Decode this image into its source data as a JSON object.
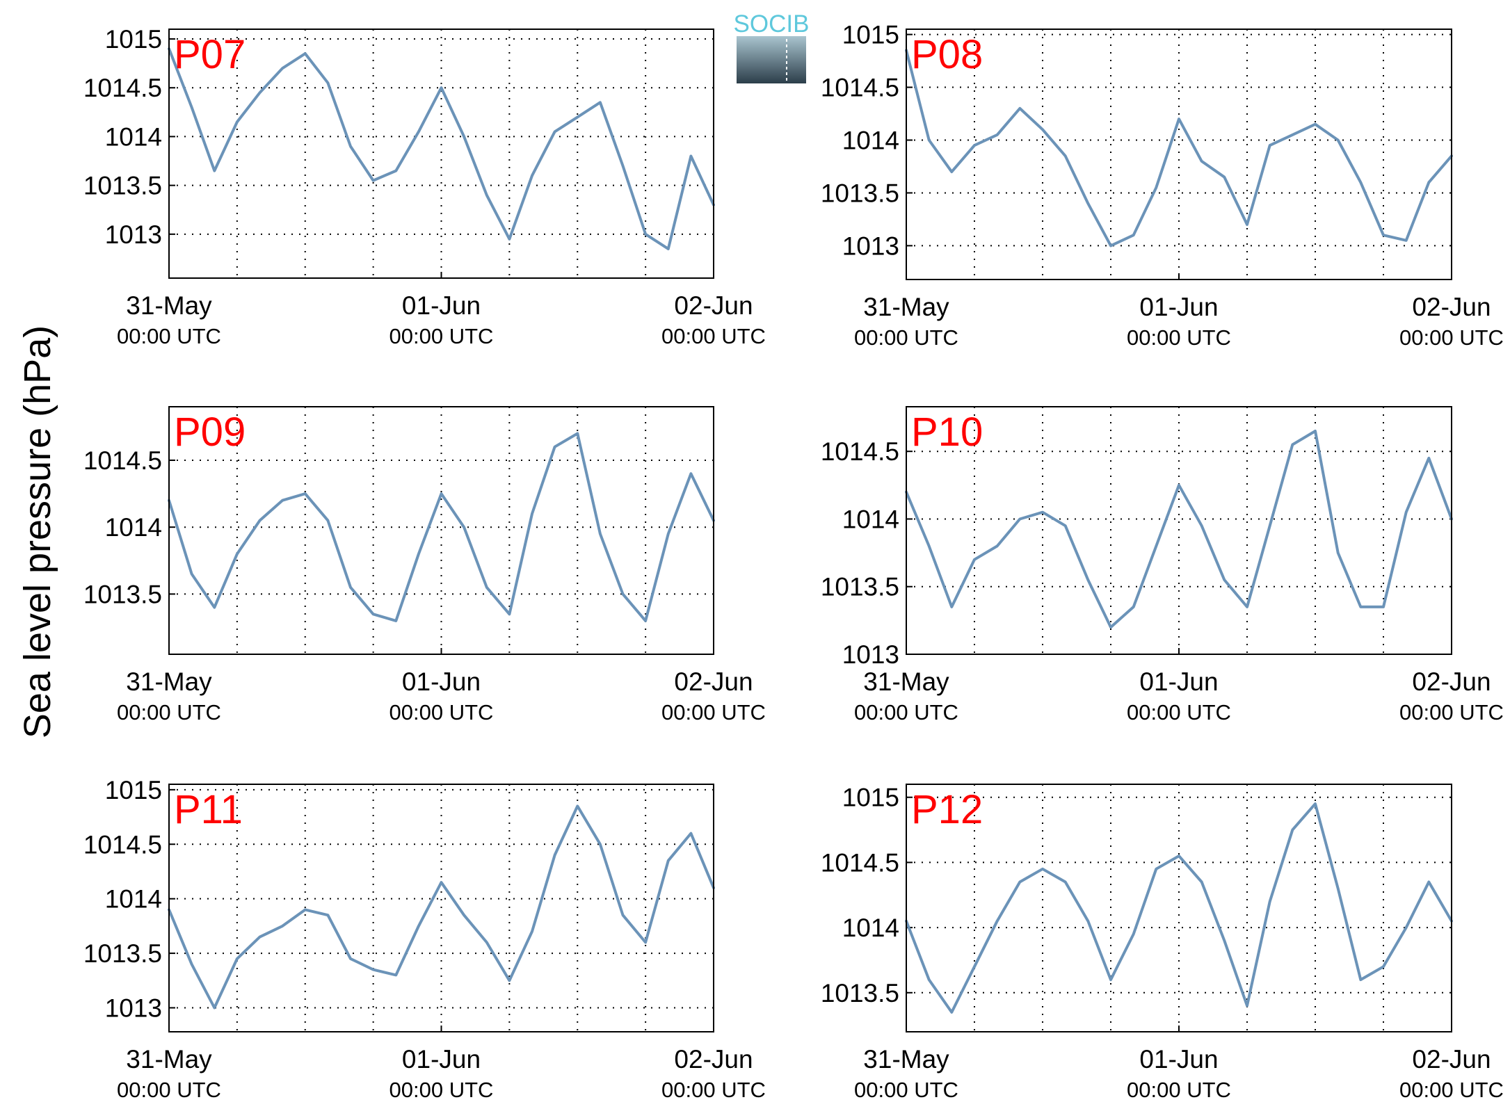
{
  "ylabel": "Sea level pressure (hPa)",
  "logo": {
    "text": "SOCIB"
  },
  "colors": {
    "line": "#6b93b8",
    "panel_label": "#ff0000",
    "axis": "#000000",
    "grid": "#000000"
  },
  "x_ticks": [
    {
      "date": "31-May",
      "time": "00:00 UTC"
    },
    {
      "date": "01-Jun",
      "time": "00:00 UTC"
    },
    {
      "date": "02-Jun",
      "time": "00:00 UTC"
    }
  ],
  "chart_data": [
    {
      "type": "line",
      "label": "P07",
      "x_unit": "hours since 31-May 00:00 UTC",
      "xlim": [
        0,
        48
      ],
      "ylim": [
        1012.55,
        1015.1
      ],
      "yticks": [
        1013,
        1013.5,
        1014,
        1014.5,
        1015
      ],
      "grid": true,
      "series": [
        {
          "x": [
            0,
            2,
            4,
            6,
            8,
            10,
            12,
            14,
            16,
            18,
            20,
            22,
            24,
            26,
            28,
            30,
            32,
            34,
            36,
            38,
            40,
            42,
            44,
            46,
            48
          ],
          "y": [
            1014.9,
            1014.3,
            1013.65,
            1014.15,
            1014.45,
            1014.7,
            1014.85,
            1014.55,
            1013.9,
            1013.55,
            1013.65,
            1014.05,
            1014.5,
            1014.0,
            1013.4,
            1012.95,
            1013.6,
            1014.05,
            1014.2,
            1014.35,
            1013.7,
            1013.0,
            1012.85,
            1013.8,
            1013.3
          ]
        }
      ]
    },
    {
      "type": "line",
      "label": "P08",
      "x_unit": "hours since 31-May 00:00 UTC",
      "xlim": [
        0,
        48
      ],
      "ylim": [
        1012.68,
        1015.05
      ],
      "yticks": [
        1013,
        1013.5,
        1014,
        1014.5,
        1015
      ],
      "grid": true,
      "series": [
        {
          "x": [
            0,
            2,
            4,
            6,
            8,
            10,
            12,
            14,
            16,
            18,
            20,
            22,
            24,
            26,
            28,
            30,
            32,
            34,
            36,
            38,
            40,
            42,
            44,
            46,
            48
          ],
          "y": [
            1014.85,
            1014.0,
            1013.7,
            1013.95,
            1014.05,
            1014.3,
            1014.1,
            1013.85,
            1013.4,
            1013.0,
            1013.1,
            1013.55,
            1014.2,
            1013.8,
            1013.65,
            1013.2,
            1013.95,
            1014.05,
            1014.15,
            1014.0,
            1013.6,
            1013.1,
            1013.05,
            1013.6,
            1013.85
          ]
        }
      ]
    },
    {
      "type": "line",
      "label": "P09",
      "x_unit": "hours since 31-May 00:00 UTC",
      "xlim": [
        0,
        48
      ],
      "ylim": [
        1013.05,
        1014.9
      ],
      "yticks": [
        1013.5,
        1014,
        1014.5
      ],
      "grid": true,
      "series": [
        {
          "x": [
            0,
            2,
            4,
            6,
            8,
            10,
            12,
            14,
            16,
            18,
            20,
            22,
            24,
            26,
            28,
            30,
            32,
            34,
            36,
            38,
            40,
            42,
            44,
            46,
            48
          ],
          "y": [
            1014.2,
            1013.65,
            1013.4,
            1013.8,
            1014.05,
            1014.2,
            1014.25,
            1014.05,
            1013.55,
            1013.35,
            1013.3,
            1013.8,
            1014.25,
            1014.0,
            1013.55,
            1013.35,
            1014.1,
            1014.6,
            1014.7,
            1013.95,
            1013.5,
            1013.3,
            1013.95,
            1014.4,
            1014.05
          ]
        }
      ]
    },
    {
      "type": "line",
      "label": "P10",
      "x_unit": "hours since 31-May 00:00 UTC",
      "xlim": [
        0,
        48
      ],
      "ylim": [
        1013.0,
        1014.83
      ],
      "yticks": [
        1013,
        1013.5,
        1014,
        1014.5
      ],
      "grid": true,
      "series": [
        {
          "x": [
            0,
            2,
            4,
            6,
            8,
            10,
            12,
            14,
            16,
            18,
            20,
            22,
            24,
            26,
            28,
            30,
            32,
            34,
            36,
            38,
            40,
            42,
            44,
            46,
            48
          ],
          "y": [
            1014.2,
            1013.8,
            1013.35,
            1013.7,
            1013.8,
            1014.0,
            1014.05,
            1013.95,
            1013.55,
            1013.2,
            1013.35,
            1013.8,
            1014.25,
            1013.95,
            1013.55,
            1013.35,
            1013.95,
            1014.55,
            1014.65,
            1013.75,
            1013.35,
            1013.35,
            1014.05,
            1014.45,
            1014.0
          ]
        }
      ]
    },
    {
      "type": "line",
      "label": "P11",
      "x_unit": "hours since 31-May 00:00 UTC",
      "xlim": [
        0,
        48
      ],
      "ylim": [
        1012.78,
        1015.05
      ],
      "yticks": [
        1013,
        1013.5,
        1014,
        1014.5,
        1015
      ],
      "grid": true,
      "series": [
        {
          "x": [
            0,
            2,
            4,
            6,
            8,
            10,
            12,
            14,
            16,
            18,
            20,
            22,
            24,
            26,
            28,
            30,
            32,
            34,
            36,
            38,
            40,
            42,
            44,
            46,
            48
          ],
          "y": [
            1013.9,
            1013.4,
            1013.0,
            1013.45,
            1013.65,
            1013.75,
            1013.9,
            1013.85,
            1013.45,
            1013.35,
            1013.3,
            1013.75,
            1014.15,
            1013.85,
            1013.6,
            1013.25,
            1013.7,
            1014.4,
            1014.85,
            1014.5,
            1013.85,
            1013.6,
            1014.35,
            1014.6,
            1014.1
          ]
        }
      ]
    },
    {
      "type": "line",
      "label": "P12",
      "x_unit": "hours since 31-May 00:00 UTC",
      "xlim": [
        0,
        48
      ],
      "ylim": [
        1013.2,
        1015.1
      ],
      "yticks": [
        1013.5,
        1014,
        1014.5,
        1015
      ],
      "grid": true,
      "series": [
        {
          "x": [
            0,
            2,
            4,
            6,
            8,
            10,
            12,
            14,
            16,
            18,
            20,
            22,
            24,
            26,
            28,
            30,
            32,
            34,
            36,
            38,
            40,
            42,
            44,
            46,
            48
          ],
          "y": [
            1014.05,
            1013.6,
            1013.35,
            1013.7,
            1014.05,
            1014.35,
            1014.45,
            1014.35,
            1014.05,
            1013.6,
            1013.95,
            1014.45,
            1014.55,
            1014.35,
            1013.9,
            1013.4,
            1014.2,
            1014.75,
            1014.95,
            1014.3,
            1013.6,
            1013.7,
            1014.0,
            1014.35,
            1014.05
          ]
        }
      ]
    }
  ]
}
